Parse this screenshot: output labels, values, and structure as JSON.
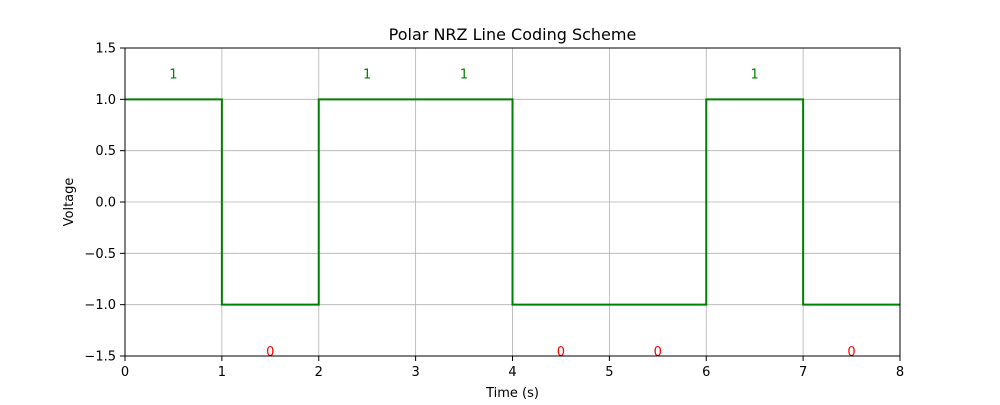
{
  "chart_data": {
    "type": "line",
    "title": "Polar NRZ Line Coding Scheme",
    "xlabel": "Time (s)",
    "ylabel": "Voltage",
    "xlim": [
      0,
      8
    ],
    "ylim": [
      -1.5,
      1.5
    ],
    "xticks": [
      0,
      1,
      2,
      3,
      4,
      5,
      6,
      7,
      8
    ],
    "xtick_labels": [
      "0",
      "1",
      "2",
      "3",
      "4",
      "5",
      "6",
      "7",
      "8"
    ],
    "yticks": [
      -1.5,
      -1.0,
      -0.5,
      0.0,
      0.5,
      1.0,
      1.5
    ],
    "ytick_labels": [
      "−1.5",
      "−1.0",
      "−0.5",
      "0.0",
      "0.5",
      "1.0",
      "1.5"
    ],
    "grid": true,
    "series": [
      {
        "color": "#008000",
        "step": "post",
        "x": [
          0,
          1,
          2,
          3,
          4,
          5,
          6,
          7,
          8
        ],
        "y": [
          1,
          -1,
          1,
          1,
          -1,
          -1,
          1,
          -1,
          -1
        ]
      }
    ],
    "bits": [
      1,
      0,
      1,
      1,
      0,
      0,
      1,
      0
    ],
    "bit_label_colors": {
      "1": "#008000",
      "0": "#ff0000"
    },
    "bit_label_y": {
      "1": 1.25,
      "0": -1.45
    }
  }
}
